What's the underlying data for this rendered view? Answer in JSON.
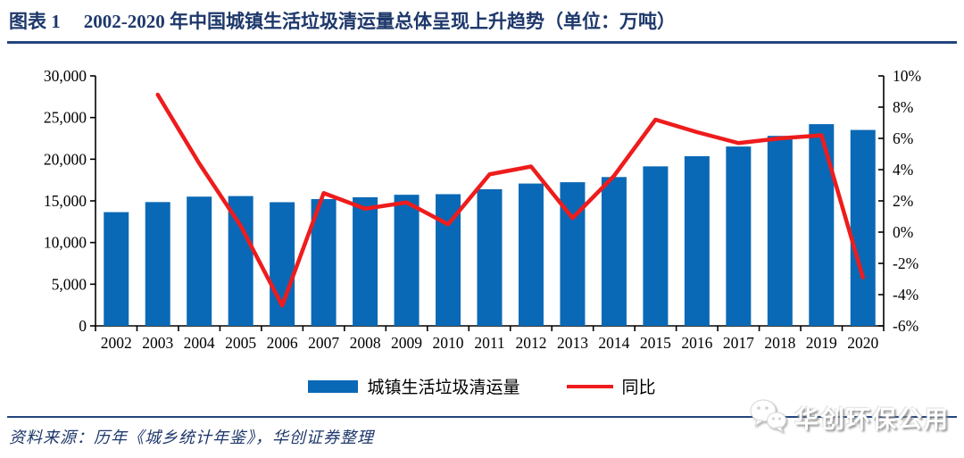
{
  "title": {
    "figure_label": "图表 1",
    "text": "2002-2020 年中国城镇生活垃圾清运量总体呈现上升趋势（单位：万吨）"
  },
  "chart_data": {
    "type": "bar",
    "subtype": "combo-bar-line-dual-axis",
    "title": "2002-2020 年中国城镇生活垃圾清运量总体呈现上升趋势",
    "unit": "万吨",
    "categories": [
      "2002",
      "2003",
      "2004",
      "2005",
      "2006",
      "2007",
      "2008",
      "2009",
      "2010",
      "2011",
      "2012",
      "2013",
      "2014",
      "2015",
      "2016",
      "2017",
      "2018",
      "2019",
      "2020"
    ],
    "series": [
      {
        "name": "城镇生活垃圾清运量",
        "type": "bar",
        "axis": "left",
        "unit": "万吨",
        "values": [
          13650,
          14857,
          15509,
          15577,
          14841,
          15215,
          15438,
          15734,
          15805,
          16395,
          17081,
          17239,
          17860,
          19142,
          20362,
          21521,
          22802,
          24206,
          23512
        ]
      },
      {
        "name": "同比",
        "type": "line",
        "axis": "right",
        "unit": "%",
        "values": [
          null,
          8.8,
          4.4,
          0.4,
          -4.7,
          2.5,
          1.5,
          1.9,
          0.5,
          3.7,
          4.2,
          0.9,
          3.6,
          7.2,
          6.4,
          5.7,
          6.0,
          6.2,
          -2.9
        ]
      }
    ],
    "left_axis": {
      "min": 0,
      "max": 30000,
      "step": 5000,
      "tick_labels": [
        "0",
        "5,000",
        "10,000",
        "15,000",
        "20,000",
        "25,000",
        "30,000"
      ]
    },
    "right_axis": {
      "min": -6,
      "max": 10,
      "step": 2,
      "tick_labels": [
        "-6%",
        "-4%",
        "-2%",
        "0%",
        "2%",
        "4%",
        "6%",
        "8%",
        "10%"
      ]
    },
    "grid": false,
    "legend_position": "bottom"
  },
  "legend": {
    "bar_label": "城镇生活垃圾清运量",
    "line_label": "同比"
  },
  "source": {
    "text": "资料来源：历年《城乡统计年鉴》，华创证券整理"
  },
  "watermark": {
    "icon": "wechat-icon",
    "text": "华创环保公用"
  },
  "colors": {
    "bar": "#0a69b6",
    "line": "#ee1c1c",
    "navy": "#1e386b",
    "axis": "#000000",
    "watermark_text": "#ffffff"
  }
}
